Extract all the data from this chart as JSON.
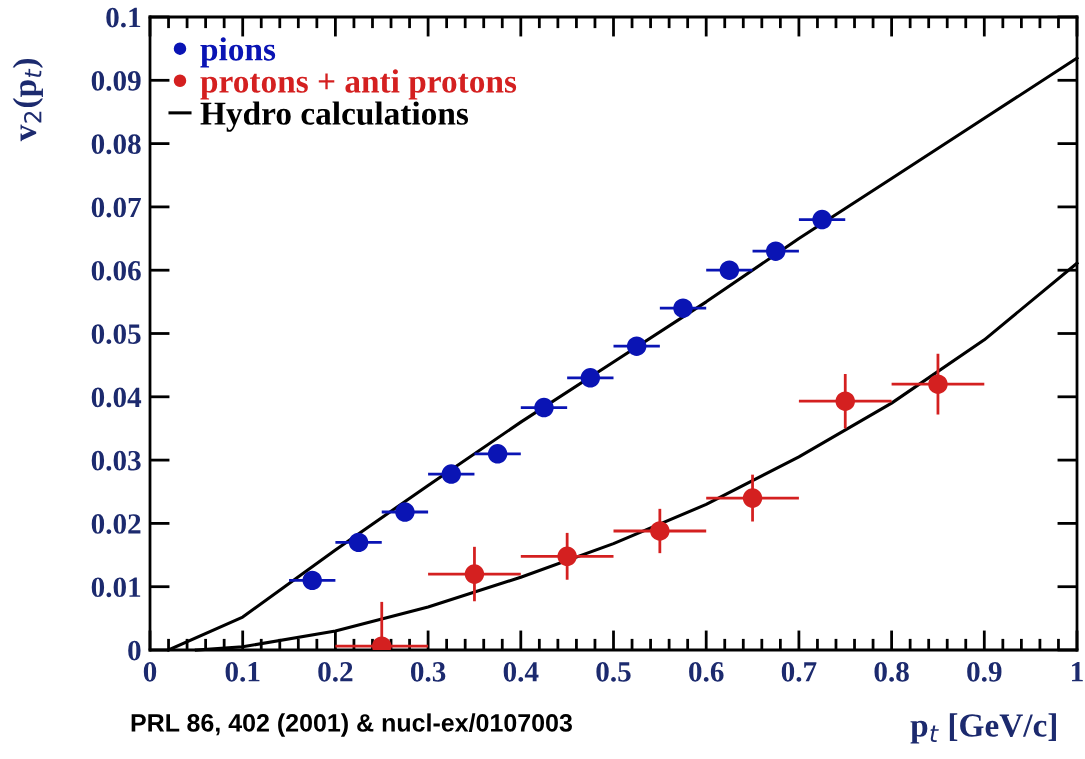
{
  "chart_data": {
    "type": "scatter",
    "xlabel": "p$_{t}$ [GeV/c]",
    "ylabel": "v$_{2}$(p$_{t}$)",
    "xlim": [
      0,
      1
    ],
    "ylim": [
      0,
      0.1
    ],
    "xticks": [
      0,
      0.1,
      0.2,
      0.3,
      0.4,
      0.5,
      0.6,
      0.7,
      0.8,
      0.9,
      1
    ],
    "yticks": [
      0,
      0.01,
      0.02,
      0.03,
      0.04,
      0.05,
      0.06,
      0.07,
      0.08,
      0.09,
      0.1
    ],
    "grid": false,
    "legend": "top left",
    "marker": "circle",
    "annotations": [
      "PRL 86, 402 (2001) & nucl-ex/0107003"
    ],
    "series": [
      {
        "name": "pions",
        "color": "#0a14b4",
        "x": [
          0.175,
          0.225,
          0.275,
          0.325,
          0.375,
          0.425,
          0.475,
          0.525,
          0.575,
          0.625,
          0.675,
          0.725
        ],
        "values": [
          0.011,
          0.017,
          0.0218,
          0.0278,
          0.031,
          0.0383,
          0.043,
          0.048,
          0.054,
          0.06,
          0.063,
          0.068
        ],
        "xerrors": [
          0.025,
          0.025,
          0.025,
          0.025,
          0.025,
          0.025,
          0.025,
          0.025,
          0.025,
          0.025,
          0.025,
          0.025
        ],
        "errors": [
          null,
          null,
          null,
          null,
          null,
          null,
          null,
          null,
          null,
          0.001,
          0.0012,
          0.0015
        ]
      },
      {
        "name": "protons + anti protons",
        "color": "#d42020",
        "x": [
          0.25,
          0.35,
          0.45,
          0.55,
          0.65,
          0.75,
          0.85
        ],
        "values": [
          0.0006,
          0.012,
          0.0148,
          0.0188,
          0.024,
          0.0393,
          0.042
        ],
        "xerrors": [
          0.05,
          0.05,
          0.05,
          0.05,
          0.05,
          0.05,
          0.05
        ],
        "errors": [
          0.007,
          0.0043,
          0.0037,
          0.0035,
          0.0037,
          0.0043,
          0.0048
        ]
      },
      {
        "name": "Hydro calculations",
        "color": "#000000",
        "type": "line",
        "marker": "none",
        "x": [
          0.02,
          0.1,
          0.2,
          0.3,
          0.4,
          0.5,
          0.6,
          0.7,
          0.8,
          0.9,
          1.0
        ],
        "values": [
          0,
          0.0052,
          0.0158,
          0.026,
          0.036,
          0.0455,
          0.055,
          0.065,
          0.0745,
          0.084,
          0.0935
        ]
      },
      {
        "color": "#000000",
        "type": "line",
        "marker": "none",
        "x": [
          0.05,
          0.1,
          0.2,
          0.3,
          0.4,
          0.5,
          0.6,
          0.7,
          0.8,
          0.9,
          1.0
        ],
        "values": [
          0,
          0.0005,
          0.003,
          0.0068,
          0.0115,
          0.0168,
          0.023,
          0.0305,
          0.039,
          0.049,
          0.0611
        ]
      }
    ]
  }
}
